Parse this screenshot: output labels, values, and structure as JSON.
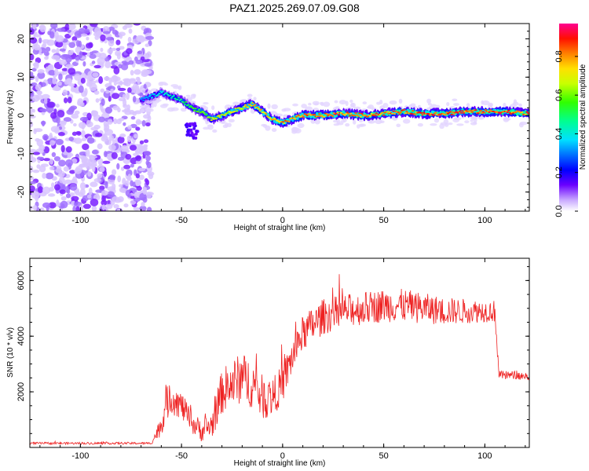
{
  "title": "PAZ1.2025.269.07.09.G08",
  "chart_data": [
    {
      "type": "heatmap",
      "xlabel": "Height of straight line (km)",
      "ylabel": "Frequency (Hz)",
      "xlim": [
        -125,
        122
      ],
      "ylim": [
        -25,
        24
      ],
      "xticks": [
        -100,
        -50,
        0,
        50,
        100
      ],
      "yticks": [
        20,
        10,
        0,
        -10,
        -20
      ],
      "colorbar": {
        "label": "Normalized spectral amplitude",
        "range": [
          0,
          0.97
        ],
        "ticks": [
          0.0,
          0.2,
          0.4,
          0.6,
          0.8
        ]
      },
      "noise_region_x": [
        -125,
        -65
      ],
      "ridge": {
        "x": [
          -70,
          -65,
          -60,
          -55,
          -50,
          -45,
          -40,
          -35,
          -30,
          -25,
          -20,
          -15,
          -10,
          -5,
          0,
          5,
          10,
          20,
          30,
          40,
          50,
          60,
          70,
          80,
          90,
          100,
          110,
          122
        ],
        "freq": [
          4,
          5,
          6,
          5,
          4,
          2,
          1,
          -1,
          0,
          1,
          2,
          3,
          1,
          -1,
          -2,
          -1,
          0,
          0,
          0.5,
          0,
          0.5,
          1,
          0.5,
          0.5,
          1,
          1,
          1,
          0.5
        ],
        "amplitude": [
          0.35,
          0.4,
          0.45,
          0.5,
          0.55,
          0.6,
          0.65,
          0.7,
          0.75,
          0.78,
          0.8,
          0.82,
          0.85,
          0.87,
          0.9,
          0.9,
          0.92,
          0.95,
          0.95,
          0.95,
          0.95,
          0.95,
          0.95,
          0.95,
          0.95,
          0.95,
          0.95,
          0.95
        ]
      }
    },
    {
      "type": "line",
      "xlabel": "Height of straight line (km)",
      "ylabel": "SNR (10 * v/v)",
      "xlim": [
        -125,
        122
      ],
      "ylim": [
        0,
        6800
      ],
      "xticks": [
        -100,
        -50,
        0,
        50,
        100
      ],
      "yticks": [
        2000,
        4000,
        6000
      ],
      "color": "#ee2222",
      "series": [
        {
          "x": [
            -125,
            -100,
            -75,
            -65,
            -60,
            -58,
            -55,
            -50,
            -45,
            -40,
            -35,
            -30,
            -25,
            -20,
            -15,
            -10,
            -5,
            0,
            5,
            10,
            15,
            20,
            30,
            40,
            50,
            60,
            70,
            80,
            90,
            100,
            105,
            107,
            110,
            115,
            122
          ],
          "mean": [
            150,
            150,
            150,
            150,
            800,
            1500,
            1800,
            1500,
            900,
            600,
            800,
            2000,
            2300,
            2500,
            2300,
            1800,
            1800,
            2300,
            3300,
            4100,
            4400,
            4700,
            4900,
            5000,
            5100,
            5100,
            5000,
            4900,
            4900,
            4900,
            4900,
            2600,
            2600,
            2600,
            2550
          ],
          "noise": [
            40,
            40,
            40,
            40,
            400,
            600,
            600,
            500,
            400,
            400,
            500,
            800,
            900,
            900,
            900,
            800,
            700,
            700,
            650,
            650,
            650,
            650,
            600,
            600,
            600,
            600,
            550,
            500,
            450,
            400,
            400,
            150,
            150,
            150,
            150
          ]
        }
      ]
    }
  ]
}
